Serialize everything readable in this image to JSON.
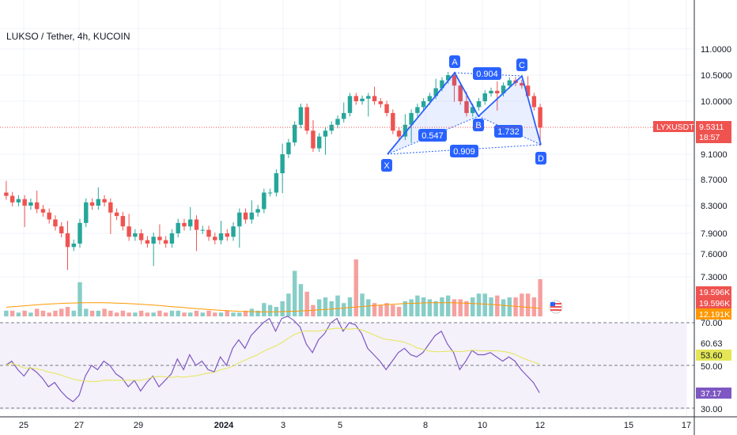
{
  "header": {
    "title": "LUKSO / Tether, 4h, KUCOIN"
  },
  "price_axis": {
    "ticks": [
      "11.0000",
      "10.5000",
      "10.0000",
      "9.1000",
      "8.7000",
      "8.3000",
      "7.9000",
      "7.6000",
      "7.3000"
    ],
    "tick_values": [
      11.0,
      10.5,
      10.0,
      9.1,
      8.7,
      8.3,
      7.9,
      7.6,
      7.3
    ],
    "current": {
      "symbol": "LYXUSDT",
      "price": "9.5311",
      "countdown": "18:57"
    }
  },
  "volume_labels": [
    "19.596K",
    "19.596K",
    "12.191K"
  ],
  "rsi_axis": {
    "ticks": [
      "70.00",
      "50.00",
      "30.00"
    ],
    "labels": {
      "upper": "60.63",
      "ma": "53.60",
      "rsi": "37.17"
    }
  },
  "time_axis": {
    "labels": [
      "25",
      "27",
      "29",
      "2024",
      "3",
      "5",
      "8",
      "10",
      "12",
      "15",
      "17"
    ]
  },
  "pattern": {
    "points": {
      "X": "X",
      "A": "A",
      "B": "B",
      "C": "C",
      "D": "D"
    },
    "ratios": {
      "xb": "0.547",
      "ac": "0.904",
      "bd": "1.732",
      "xd": "0.909"
    }
  },
  "colors": {
    "up": "#26a69a",
    "down": "#ef5350",
    "accent": "#2962ff",
    "rsi": "#7e57c2",
    "rsi_ma": "#e4e655",
    "vol_ma": "#ff9800"
  },
  "chart_data": {
    "type": "candlestick",
    "symbol": "LYXUSDT",
    "timeframe": "4h",
    "exchange": "KUCOIN",
    "grid": true,
    "y_ticks": [
      11.0,
      10.5,
      10.0,
      9.1,
      8.7,
      8.3,
      7.9,
      7.6,
      7.3
    ],
    "last_price": 9.5311,
    "x_dates": [
      "25",
      "27",
      "29",
      "2024",
      "3",
      "5",
      "8",
      "10",
      "12",
      "15",
      "17"
    ],
    "ohlc_approx_close": [
      8.45,
      8.35,
      8.4,
      8.3,
      8.35,
      8.25,
      8.2,
      8.1,
      8.0,
      7.9,
      7.7,
      7.75,
      8.05,
      8.35,
      8.3,
      8.4,
      8.35,
      8.2,
      8.15,
      8.0,
      7.85,
      7.9,
      7.8,
      7.75,
      7.85,
      7.8,
      7.75,
      7.9,
      8.05,
      8.0,
      8.1,
      7.95,
      7.95,
      7.85,
      7.8,
      7.9,
      7.85,
      8.0,
      8.2,
      8.1,
      8.2,
      8.25,
      8.5,
      8.5,
      8.8,
      9.1,
      9.3,
      9.6,
      9.9,
      9.5,
      9.2,
      9.4,
      9.5,
      9.6,
      9.7,
      9.8,
      10.1,
      10.0,
      10.05,
      10.1,
      10.0,
      9.95,
      9.8,
      9.5,
      9.4,
      9.6,
      9.8,
      9.9,
      10.0,
      10.1,
      10.25,
      10.4,
      10.5,
      10.3,
      10.0,
      9.8,
      9.9,
      10.0,
      10.15,
      10.2,
      10.15,
      10.3,
      10.4,
      10.35,
      10.3,
      10.1,
      9.9,
      9.55
    ],
    "volume_k": [
      3,
      3,
      2,
      3,
      2,
      4,
      3,
      2,
      3,
      4,
      5,
      3,
      18,
      4,
      3,
      3,
      4,
      3,
      2,
      3,
      2,
      2,
      3,
      2,
      2,
      3,
      2,
      3,
      3,
      2,
      2,
      3,
      2,
      3,
      2,
      2,
      3,
      2,
      2,
      3,
      4,
      3,
      7,
      6,
      5,
      8,
      12,
      24,
      17,
      13,
      6,
      9,
      10,
      8,
      11,
      7,
      10,
      30,
      12,
      9,
      7,
      6,
      7,
      6,
      5,
      8,
      9,
      11,
      10,
      9,
      8,
      10,
      11,
      9,
      9,
      8,
      10,
      12,
      12,
      10,
      11,
      9,
      10,
      10,
      12,
      12,
      10,
      19.596
    ],
    "volume_ma_k": 12.191,
    "rsi": {
      "values": [
        50,
        52,
        48,
        45,
        49,
        47,
        44,
        40,
        42,
        38,
        35,
        33,
        36,
        45,
        50,
        48,
        52,
        50,
        46,
        44,
        40,
        43,
        38,
        42,
        45,
        40,
        43,
        46,
        53,
        48,
        55,
        50,
        52,
        48,
        47,
        54,
        50,
        58,
        62,
        58,
        64,
        67,
        70,
        72,
        66,
        72,
        73,
        71,
        68,
        60,
        56,
        62,
        65,
        70,
        72,
        66,
        70,
        69,
        65,
        58,
        55,
        52,
        48,
        52,
        56,
        58,
        55,
        54,
        56,
        60,
        64,
        66,
        60,
        56,
        48,
        52,
        57,
        55,
        55,
        56,
        54,
        52,
        54,
        52,
        48,
        45,
        42,
        37.17
      ],
      "ma": 53.6,
      "upper_band": 70,
      "lower_band": 30,
      "marker": 60.63
    },
    "harmonic_pattern": {
      "points": [
        "X",
        "A",
        "B",
        "C",
        "D"
      ],
      "X": 9.15,
      "A": 10.55,
      "B": 9.75,
      "C": 10.45,
      "D": 9.3,
      "ratios": {
        "XB": 0.547,
        "AC": 0.904,
        "BD": 1.732,
        "XD": 0.909
      }
    }
  }
}
